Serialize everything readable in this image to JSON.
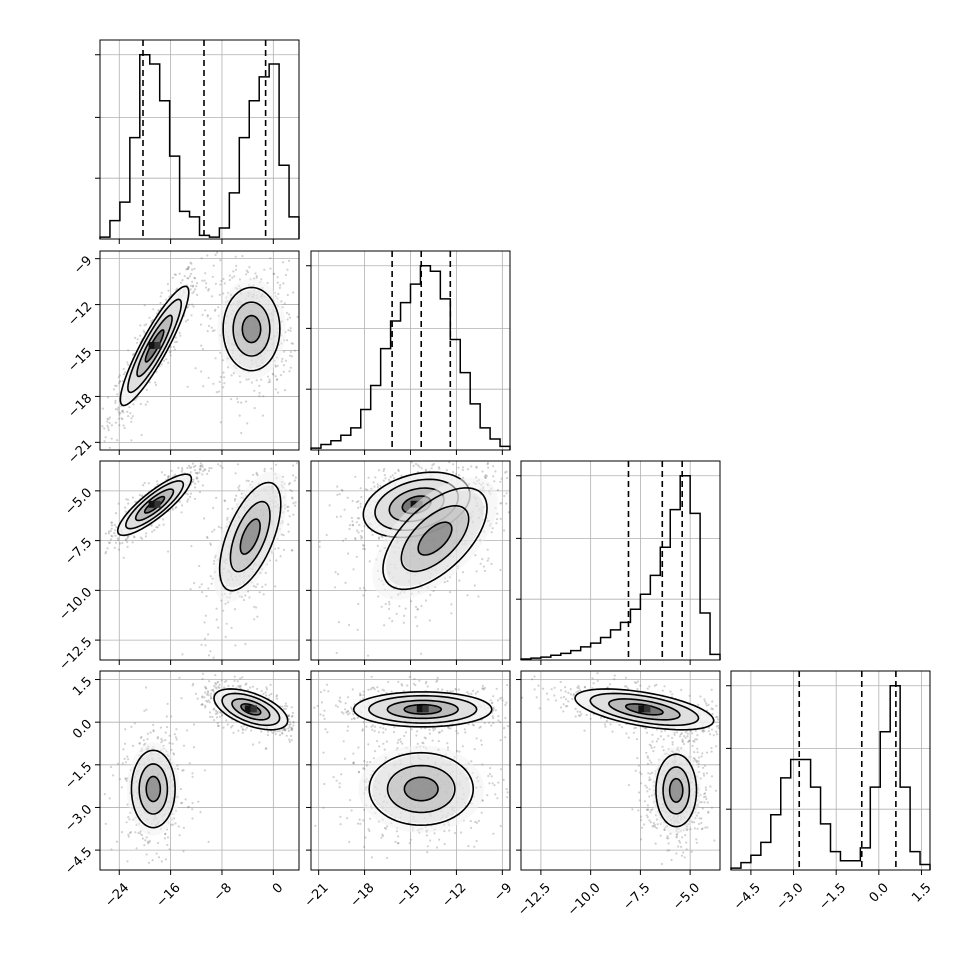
{
  "chart_data": {
    "type": "corner",
    "grid": true,
    "parameters": [
      {
        "range": [
          -27,
          4
        ],
        "ticks": [
          -24,
          -16,
          -8,
          0
        ],
        "tick_labels": [
          "−24",
          "−16",
          "−8",
          "0"
        ]
      },
      {
        "range": [
          -21.5,
          -8.5
        ],
        "ticks": [
          -21,
          -18,
          -15,
          -12,
          -9
        ],
        "tick_labels": [
          "−21",
          "−18",
          "−15",
          "−12",
          "−9"
        ]
      },
      {
        "range": [
          -13.5,
          -3.5
        ],
        "ticks": [
          -12.5,
          -10.0,
          -7.5,
          -5.0
        ],
        "tick_labels": [
          "−12.5",
          "−10.0",
          "−7.5",
          "−5.0"
        ]
      },
      {
        "range": [
          -5.2,
          1.8
        ],
        "ticks": [
          -4.5,
          -3.0,
          -1.5,
          0.0,
          1.5
        ],
        "tick_labels": [
          "−4.5",
          "−3.0",
          "−1.5",
          "0.0",
          "1.5"
        ]
      }
    ],
    "histograms": [
      {
        "param": 0,
        "bins": [
          -27,
          -25.45,
          -23.9,
          -22.35,
          -20.8,
          -19.25,
          -17.7,
          -16.15,
          -14.6,
          -13.05,
          -11.5,
          -9.95,
          -8.4,
          -6.85,
          -5.3,
          -3.75,
          -2.2,
          -0.65,
          0.9,
          2.45,
          4
        ],
        "counts": [
          0.01,
          0.1,
          0.2,
          0.55,
          1.0,
          0.95,
          0.75,
          0.45,
          0.15,
          0.12,
          0.02,
          0.01,
          0.06,
          0.25,
          0.55,
          0.75,
          0.88,
          0.95,
          0.4,
          0.12
        ],
        "quantiles": [
          -20.3,
          -10.8,
          -1.2
        ]
      },
      {
        "param": 1,
        "bins": [
          -21.5,
          -20.85,
          -20.2,
          -19.55,
          -18.9,
          -18.25,
          -17.6,
          -16.95,
          -16.3,
          -15.65,
          -15,
          -14.35,
          -13.7,
          -13.05,
          -12.4,
          -11.75,
          -11.1,
          -10.45,
          -9.8,
          -9.15,
          -8.5
        ],
        "counts": [
          0.01,
          0.03,
          0.05,
          0.08,
          0.12,
          0.22,
          0.35,
          0.55,
          0.7,
          0.8,
          0.9,
          1.0,
          0.97,
          0.82,
          0.6,
          0.42,
          0.25,
          0.12,
          0.06,
          0.02
        ],
        "quantiles": [
          -16.2,
          -14.3,
          -12.4
        ]
      },
      {
        "param": 2,
        "bins": [
          -13.5,
          -13,
          -12.5,
          -12,
          -11.5,
          -11,
          -10.5,
          -10,
          -9.5,
          -9,
          -8.5,
          -8,
          -7.5,
          -7,
          -6.5,
          -6,
          -5.5,
          -5,
          -4.5,
          -4,
          -3.5
        ],
        "counts": [
          0.005,
          0.01,
          0.015,
          0.025,
          0.035,
          0.05,
          0.07,
          0.09,
          0.12,
          0.16,
          0.2,
          0.27,
          0.35,
          0.45,
          0.6,
          0.8,
          0.98,
          0.78,
          0.25,
          0.03
        ],
        "quantiles": [
          -8.1,
          -6.4,
          -5.4
        ]
      },
      {
        "param": 3,
        "bins": [
          -5.2,
          -4.85,
          -4.5,
          -4.15,
          -3.8,
          -3.45,
          -3.1,
          -2.75,
          -2.4,
          -2.05,
          -1.7,
          -1.35,
          -1.0,
          -0.65,
          -0.3,
          0.05,
          0.4,
          0.75,
          1.1,
          1.45,
          1.8
        ],
        "counts": [
          0.01,
          0.04,
          0.08,
          0.15,
          0.3,
          0.5,
          0.6,
          0.6,
          0.45,
          0.25,
          0.1,
          0.05,
          0.05,
          0.12,
          0.45,
          0.75,
          1.0,
          0.45,
          0.1,
          0.03
        ],
        "quantiles": [
          -2.8,
          -0.6,
          0.6
        ]
      }
    ],
    "joint": [
      {
        "x": 0,
        "y": 1,
        "modes": [
          {
            "cx": -18.5,
            "cy": -14.7,
            "sx": 2.6,
            "sy": 1.9,
            "rho": 0.9,
            "weight": 1.0
          },
          {
            "cx": -3.4,
            "cy": -13.6,
            "sx": 2.6,
            "sy": 1.6,
            "rho": 0.0,
            "weight": 0.6
          }
        ]
      },
      {
        "x": 0,
        "y": 2,
        "modes": [
          {
            "cx": -18.5,
            "cy": -5.7,
            "sx": 2.8,
            "sy": 0.75,
            "rho": 0.85,
            "weight": 1.0
          },
          {
            "cx": -3.6,
            "cy": -7.3,
            "sx": 2.8,
            "sy": 1.6,
            "rho": 0.6,
            "weight": 0.55
          }
        ]
      },
      {
        "x": 0,
        "y": 3,
        "modes": [
          {
            "cx": -3.5,
            "cy": 0.45,
            "sx": 2.8,
            "sy": 0.35,
            "rho": -0.55,
            "weight": 1.0
          },
          {
            "cx": -18.7,
            "cy": -2.35,
            "sx": 2.0,
            "sy": 0.8,
            "rho": 0.0,
            "weight": 0.5
          }
        ]
      },
      {
        "x": 1,
        "y": 2,
        "modes": [
          {
            "cx": -14.6,
            "cy": -5.7,
            "sx": 1.7,
            "sy": 0.8,
            "rho": 0.3,
            "weight": 1.0
          },
          {
            "cx": -13.4,
            "cy": -7.4,
            "sx": 2.0,
            "sy": 1.5,
            "rho": 0.6,
            "weight": 0.55
          }
        ]
      },
      {
        "x": 1,
        "y": 3,
        "modes": [
          {
            "cx": -14.2,
            "cy": 0.45,
            "sx": 2.2,
            "sy": 0.3,
            "rho": 0.0,
            "weight": 1.0
          },
          {
            "cx": -14.3,
            "cy": -2.35,
            "sx": 2.0,
            "sy": 0.75,
            "rho": 0.0,
            "weight": 0.55
          }
        ]
      },
      {
        "x": 2,
        "y": 3,
        "modes": [
          {
            "cx": -7.3,
            "cy": 0.45,
            "sx": 1.7,
            "sy": 0.35,
            "rho": -0.55,
            "weight": 1.0
          },
          {
            "cx": -5.7,
            "cy": -2.4,
            "sx": 0.6,
            "sy": 0.75,
            "rho": 0.0,
            "weight": 0.75
          }
        ]
      }
    ]
  }
}
